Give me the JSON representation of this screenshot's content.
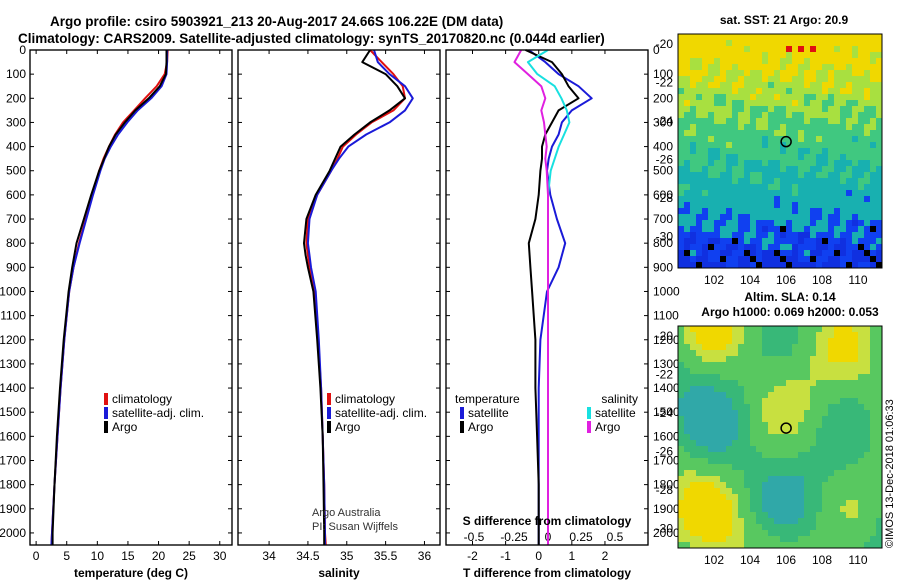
{
  "header": {
    "line1": "Argo profile: csiro 5903921_213 20-Aug-2017 24.66S 106.22E (DM data)",
    "line2": "Climatology: CARS2009. Satellite-adjusted climatology: synTS_20170820.nc (0.044d earlier)"
  },
  "colors": {
    "climatology": "#e01010",
    "satellite": "#1a1ad8",
    "argo": "#000000",
    "satellite_salinity": "#18e0e0",
    "argo_salinity": "#e020e0"
  },
  "footer": {
    "credit1": "Argo Australia",
    "credit2": "PI: Susan Wijffels",
    "stamp": "©IMOS 13-Dec-2018 01:06:33"
  },
  "legend": {
    "climatology": "climatology",
    "satellite_adj": "satellite-adj. clim.",
    "argo": "Argo",
    "temperature": "temperature",
    "salinity": "salinity",
    "satellite": "satellite"
  },
  "maps": {
    "sst_title": "sat. SST: 21 Argo: 20.9",
    "sla_title1": "Altim. SLA: 0.14",
    "sla_title2": "Argo h1000: 0.069 h2000: 0.053",
    "xticks": [
      "102",
      "104",
      "106",
      "108",
      "110"
    ],
    "yticks": [
      "-20",
      "-22",
      "-24",
      "-26",
      "-28",
      "-30"
    ]
  },
  "chart_data": [
    {
      "type": "line",
      "xlabel": "temperature (deg C)",
      "ylabel": "",
      "xlim": [
        -1,
        32
      ],
      "ylim": [
        2050,
        0
      ],
      "xticks": [
        "0",
        "5",
        "10",
        "15",
        "20",
        "25",
        "30"
      ],
      "yticks": [
        "0",
        "100",
        "200",
        "300",
        "400",
        "500",
        "600",
        "700",
        "800",
        "900",
        "1000",
        "1100",
        "1200",
        "1300",
        "1400",
        "1500",
        "1600",
        "1700",
        "1800",
        "1900",
        "2000"
      ],
      "depth": [
        0,
        50,
        100,
        150,
        200,
        250,
        300,
        350,
        400,
        450,
        500,
        600,
        700,
        800,
        900,
        1000,
        1200,
        1400,
        1600,
        1800,
        2000,
        2050
      ],
      "series": [
        {
          "name": "climatology",
          "values": [
            21.5,
            21.4,
            21.0,
            19.7,
            17.8,
            16.0,
            14.2,
            12.9,
            11.9,
            11.0,
            10.3,
            9.2,
            8.1,
            7.0,
            6.1,
            5.4,
            4.6,
            4.0,
            3.5,
            3.0,
            2.6,
            2.5
          ]
        },
        {
          "name": "satellite-adj. clim.",
          "values": [
            21.4,
            21.4,
            21.3,
            20.5,
            18.8,
            16.6,
            14.9,
            13.4,
            12.2,
            11.2,
            10.5,
            9.3,
            8.2,
            7.1,
            6.1,
            5.4,
            4.6,
            4.0,
            3.5,
            3.0,
            2.6,
            2.5
          ]
        },
        {
          "name": "Argo",
          "values": [
            21.3,
            21.3,
            21.2,
            20.2,
            18.4,
            16.2,
            14.5,
            13.0,
            11.9,
            11.1,
            10.3,
            9.0,
            7.8,
            6.6,
            5.9,
            5.3,
            4.5,
            3.9,
            3.4,
            3.0,
            2.7,
            2.7
          ]
        }
      ]
    },
    {
      "type": "line",
      "xlabel": "salinity",
      "ylabel": "",
      "xlim": [
        33.6,
        36.2
      ],
      "ylim": [
        2050,
        0
      ],
      "xticks": [
        "34",
        "34.5",
        "35",
        "35.5",
        "36"
      ],
      "depth": [
        0,
        50,
        100,
        150,
        200,
        250,
        300,
        350,
        400,
        450,
        500,
        600,
        700,
        800,
        850,
        900,
        1000,
        1200,
        1400,
        1600,
        1800,
        2000,
        2050
      ],
      "series": [
        {
          "name": "climatology",
          "values": [
            35.3,
            35.45,
            35.6,
            35.72,
            35.75,
            35.6,
            35.32,
            35.12,
            34.95,
            34.88,
            34.8,
            34.62,
            34.5,
            34.48,
            34.5,
            34.52,
            34.58,
            34.63,
            34.67,
            34.69,
            34.71,
            34.72,
            34.73
          ]
        },
        {
          "name": "satellite-adj. clim.",
          "values": [
            35.35,
            35.4,
            35.55,
            35.75,
            35.85,
            35.75,
            35.55,
            35.25,
            35.02,
            34.9,
            34.8,
            34.62,
            34.52,
            34.5,
            34.52,
            34.54,
            34.6,
            34.64,
            34.67,
            34.69,
            34.71,
            34.72,
            34.72
          ]
        },
        {
          "name": "Argo",
          "values": [
            35.3,
            35.2,
            35.5,
            35.65,
            35.75,
            35.55,
            35.3,
            35.1,
            34.92,
            34.85,
            34.78,
            34.6,
            34.48,
            34.45,
            34.47,
            34.5,
            34.57,
            34.62,
            34.66,
            34.69,
            34.7,
            34.71,
            34.71
          ]
        }
      ]
    },
    {
      "type": "line",
      "xlabel": "T difference from climatology",
      "xlabel2": "S difference from climatology",
      "xlim": [
        -2.8,
        3.3
      ],
      "ylim": [
        2050,
        0
      ],
      "xticks": [
        "-2",
        "-1",
        "0",
        "1",
        "2"
      ],
      "xticks2": [
        "-0.5",
        "-0.25",
        "0",
        "0.25",
        "0.5"
      ],
      "depth": [
        0,
        50,
        100,
        150,
        200,
        250,
        300,
        350,
        400,
        450,
        500,
        600,
        700,
        800,
        900,
        1000,
        1200,
        1400,
        1600,
        1800,
        2000,
        2050
      ],
      "series": [
        {
          "name": "temperature satellite",
          "values": [
            -0.3,
            0.2,
            0.6,
            1.2,
            1.6,
            1.0,
            0.7,
            0.6,
            0.4,
            0.3,
            0.25,
            0.35,
            0.55,
            0.8,
            0.6,
            0.25,
            0.05,
            0.0,
            0.0,
            0.0,
            0.0,
            0.0
          ]
        },
        {
          "name": "temperature Argo",
          "values": [
            -0.4,
            0.4,
            0.7,
            0.9,
            1.2,
            0.6,
            0.4,
            0.2,
            0.1,
            0.1,
            0.05,
            0.0,
            -0.1,
            -0.3,
            -0.25,
            -0.2,
            -0.1,
            -0.1,
            -0.05,
            0.0,
            0.0,
            0.0
          ]
        },
        {
          "name": "salinity satellite",
          "values": [
            0.0,
            -0.15,
            -0.08,
            0.05,
            0.1,
            0.14,
            0.16,
            0.12,
            0.08,
            0.05,
            0.02,
            0.0,
            0.0,
            0.0,
            0.0,
            0.0,
            0.0,
            0.0,
            0.0,
            0.0,
            0.0,
            0.0
          ]
        },
        {
          "name": "salinity Argo",
          "values": [
            -0.2,
            -0.25,
            -0.15,
            -0.05,
            -0.02,
            -0.05,
            -0.03,
            -0.02,
            -0.01,
            -0.02,
            -0.01,
            0.0,
            0.0,
            0.0,
            0.0,
            0.0,
            0.0,
            0.0,
            0.0,
            0.0,
            0.0,
            0.0
          ]
        }
      ]
    }
  ]
}
